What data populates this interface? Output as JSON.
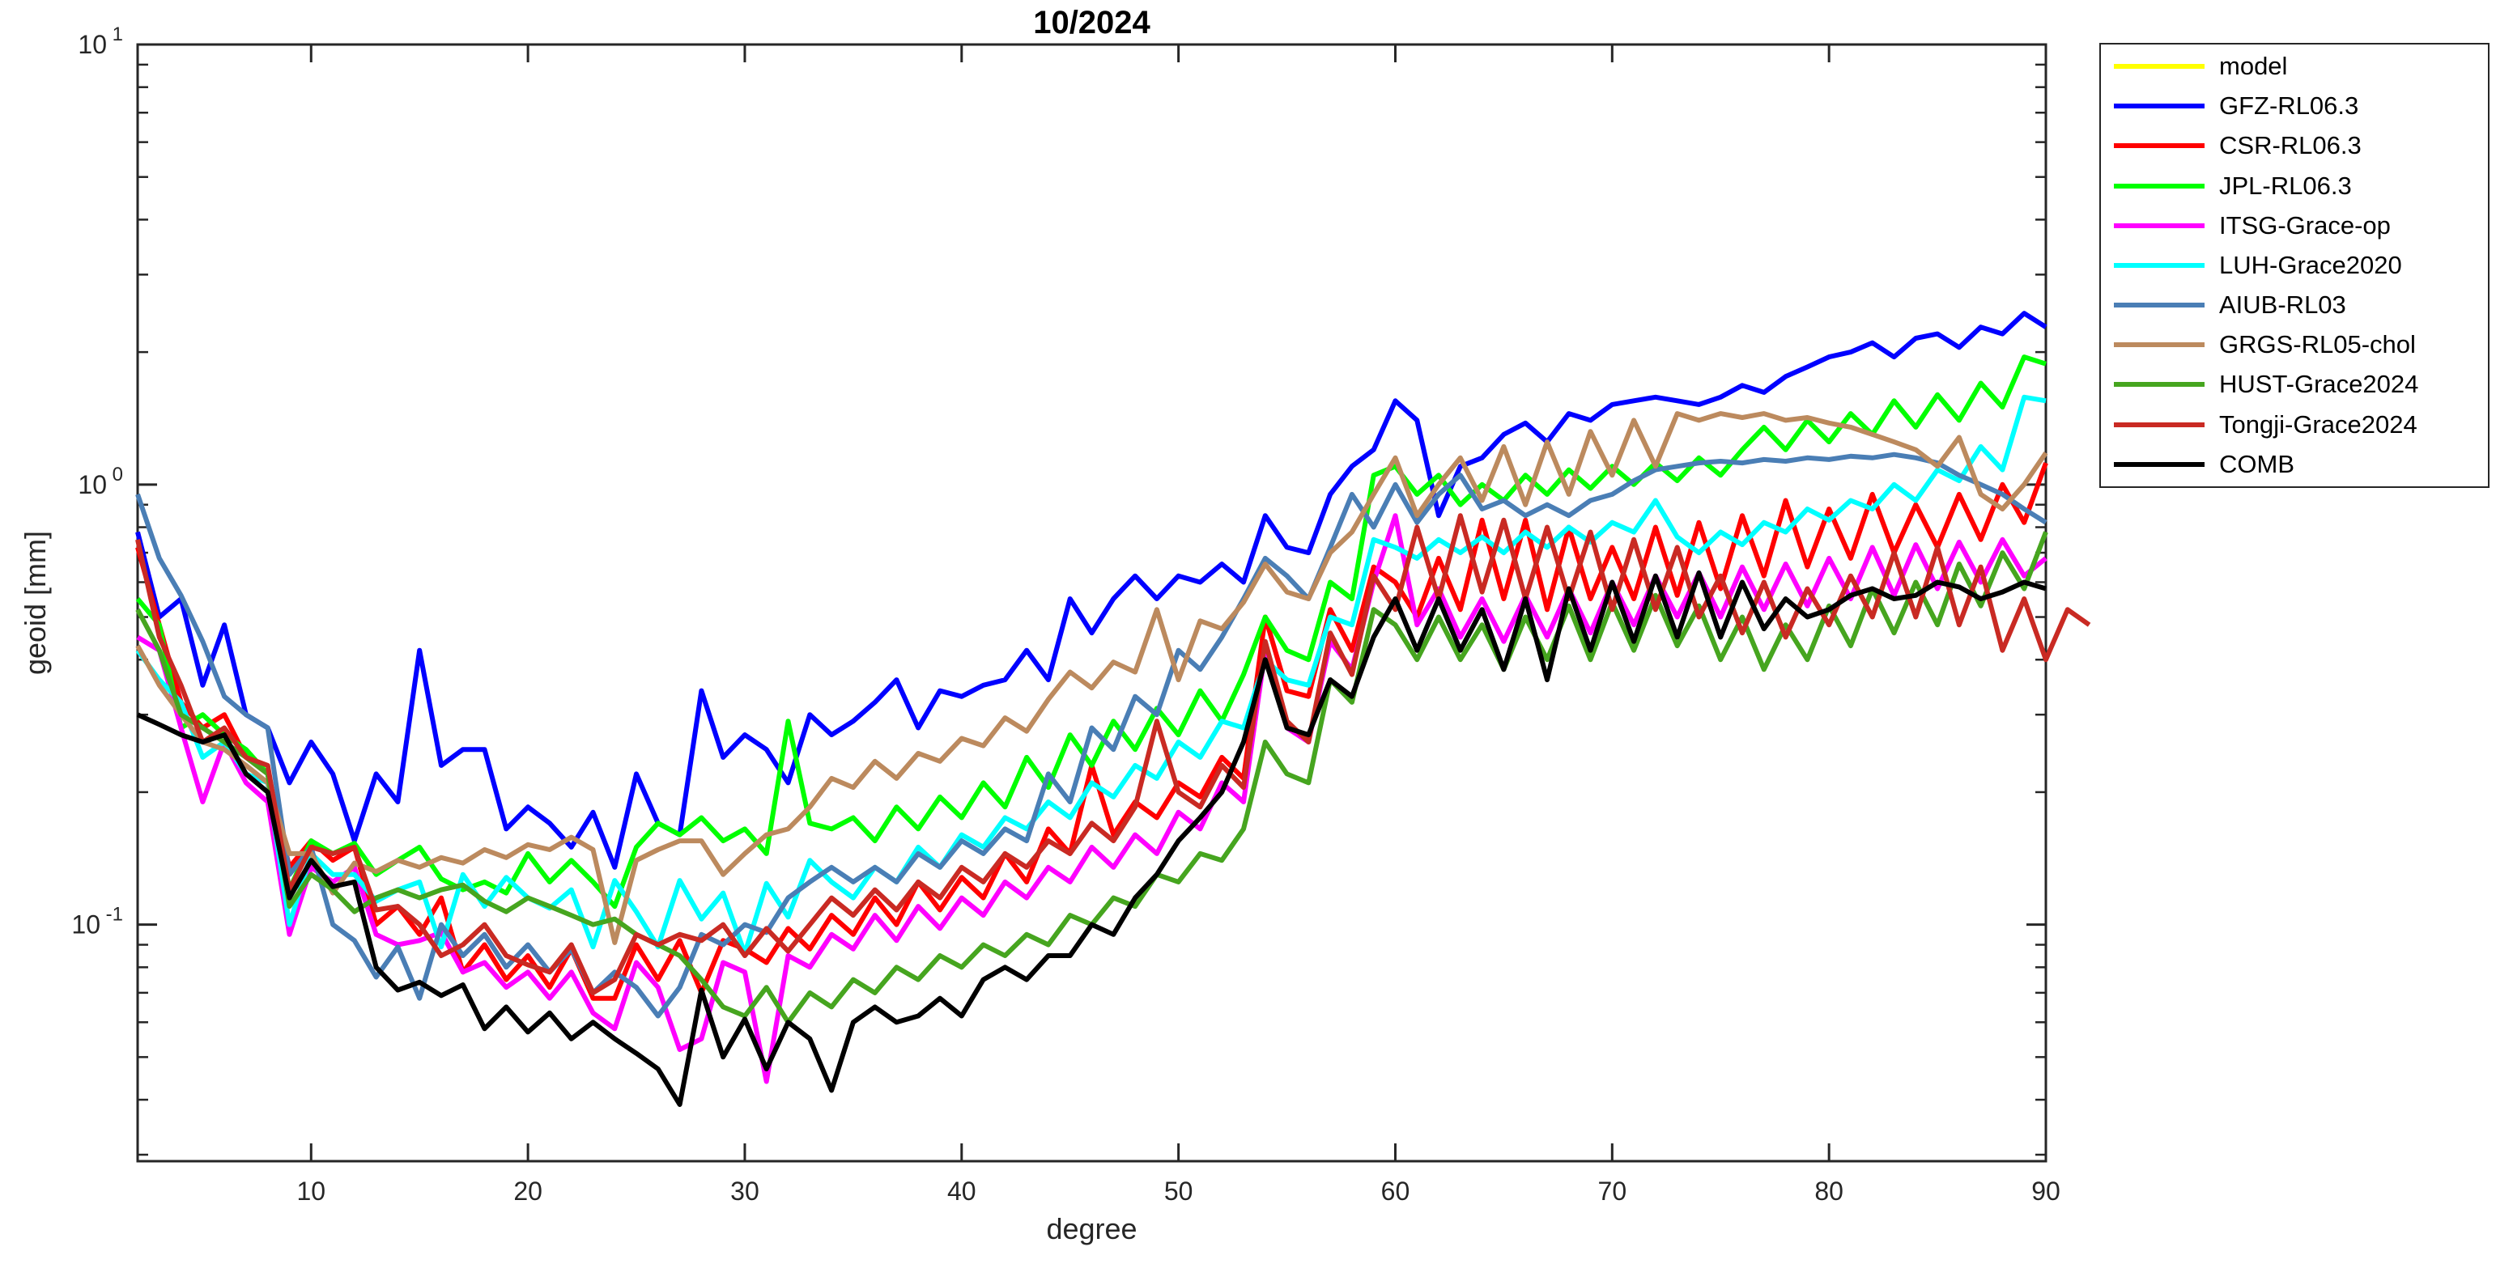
{
  "figure": {
    "title": "10/2024",
    "xlabel": "degree",
    "ylabel": "geoid [mm]"
  },
  "chart_data": {
    "type": "line",
    "title": "10/2024",
    "xlabel": "degree",
    "ylabel": "geoid [mm]",
    "grid": false,
    "legend_position": "outside-right",
    "x_axis": {
      "scale": "linear",
      "min": 2,
      "max": 90,
      "ticks": [
        10,
        20,
        30,
        40,
        50,
        60,
        70,
        80,
        90
      ]
    },
    "y_axis": {
      "scale": "log",
      "min": 0.029,
      "max": 10,
      "major_ticks": [
        {
          "value": 10,
          "base": "10",
          "exp": "1"
        },
        {
          "value": 1,
          "base": "10",
          "exp": "0"
        },
        {
          "value": 0.1,
          "base": "10",
          "exp": "-1"
        }
      ],
      "minor_ticks": [
        0.03,
        0.04,
        0.05,
        0.06,
        0.07,
        0.08,
        0.09,
        0.2,
        0.3,
        0.4,
        0.5,
        0.6,
        0.7,
        0.8,
        0.9,
        2,
        3,
        4,
        5,
        6,
        7,
        8,
        9
      ]
    },
    "axis_color": "#262626",
    "x_start": 2,
    "x_step": 1,
    "series": [
      {
        "name": "model",
        "color": "#ffff00",
        "values": []
      },
      {
        "name": "GFZ-RL06.3",
        "color": "#0000ff",
        "values": [
          0.78,
          0.5,
          0.55,
          0.35,
          0.48,
          0.3,
          0.28,
          0.21,
          0.26,
          0.22,
          0.155,
          0.22,
          0.19,
          0.42,
          0.23,
          0.25,
          0.25,
          0.165,
          0.185,
          0.17,
          0.15,
          0.18,
          0.135,
          0.22,
          0.17,
          0.16,
          0.34,
          0.24,
          0.27,
          0.25,
          0.21,
          0.3,
          0.27,
          0.29,
          0.32,
          0.36,
          0.28,
          0.34,
          0.33,
          0.35,
          0.36,
          0.42,
          0.36,
          0.55,
          0.46,
          0.55,
          0.62,
          0.55,
          0.62,
          0.6,
          0.66,
          0.6,
          0.85,
          0.72,
          0.7,
          0.95,
          1.1,
          1.2,
          1.55,
          1.4,
          0.85,
          1.1,
          1.15,
          1.3,
          1.38,
          1.25,
          1.45,
          1.4,
          1.52,
          1.55,
          1.58,
          1.55,
          1.52,
          1.58,
          1.68,
          1.62,
          1.76,
          1.85,
          1.95,
          2.0,
          2.1,
          1.95,
          2.15,
          2.2,
          2.05,
          2.28,
          2.2,
          2.45,
          2.28
        ]
      },
      {
        "name": "CSR-RL06.3",
        "color": "#ff0000",
        "values": [
          0.72,
          0.48,
          0.32,
          0.28,
          0.3,
          0.24,
          0.22,
          0.135,
          0.155,
          0.14,
          0.15,
          0.1,
          0.11,
          0.095,
          0.115,
          0.078,
          0.09,
          0.075,
          0.085,
          0.072,
          0.088,
          0.068,
          0.068,
          0.09,
          0.075,
          0.092,
          0.07,
          0.092,
          0.088,
          0.082,
          0.098,
          0.088,
          0.105,
          0.095,
          0.115,
          0.1,
          0.125,
          0.108,
          0.128,
          0.115,
          0.145,
          0.125,
          0.165,
          0.145,
          0.23,
          0.16,
          0.19,
          0.175,
          0.21,
          0.195,
          0.24,
          0.215,
          0.5,
          0.34,
          0.33,
          0.52,
          0.42,
          0.65,
          0.6,
          0.5,
          0.68,
          0.52,
          0.83,
          0.55,
          0.83,
          0.52,
          0.8,
          0.55,
          0.72,
          0.55,
          0.8,
          0.56,
          0.82,
          0.58,
          0.85,
          0.62,
          0.92,
          0.65,
          0.88,
          0.68,
          0.95,
          0.7,
          0.9,
          0.72,
          0.95,
          0.75,
          1.0,
          0.82,
          1.12
        ]
      },
      {
        "name": "JPL-RL06.3",
        "color": "#00ff00",
        "values": [
          0.55,
          0.48,
          0.28,
          0.3,
          0.27,
          0.25,
          0.22,
          0.12,
          0.155,
          0.145,
          0.153,
          0.13,
          0.14,
          0.15,
          0.127,
          0.12,
          0.125,
          0.118,
          0.145,
          0.125,
          0.14,
          0.125,
          0.11,
          0.15,
          0.17,
          0.16,
          0.175,
          0.155,
          0.165,
          0.145,
          0.29,
          0.17,
          0.165,
          0.175,
          0.155,
          0.185,
          0.165,
          0.195,
          0.175,
          0.21,
          0.185,
          0.24,
          0.205,
          0.27,
          0.23,
          0.29,
          0.25,
          0.31,
          0.27,
          0.34,
          0.29,
          0.37,
          0.5,
          0.42,
          0.4,
          0.6,
          0.55,
          1.05,
          1.1,
          0.95,
          1.05,
          0.9,
          1.0,
          0.92,
          1.05,
          0.95,
          1.08,
          0.98,
          1.1,
          1.0,
          1.12,
          1.02,
          1.15,
          1.05,
          1.2,
          1.35,
          1.2,
          1.4,
          1.25,
          1.45,
          1.3,
          1.55,
          1.35,
          1.6,
          1.4,
          1.7,
          1.5,
          1.95,
          1.88
        ]
      },
      {
        "name": "ITSG-Grace-op",
        "color": "#ff00ff",
        "values": [
          0.45,
          0.42,
          0.28,
          0.19,
          0.26,
          0.21,
          0.19,
          0.095,
          0.135,
          0.125,
          0.135,
          0.095,
          0.09,
          0.092,
          0.096,
          0.078,
          0.082,
          0.072,
          0.078,
          0.068,
          0.078,
          0.063,
          0.058,
          0.082,
          0.072,
          0.052,
          0.055,
          0.082,
          0.078,
          0.044,
          0.085,
          0.08,
          0.095,
          0.088,
          0.105,
          0.092,
          0.11,
          0.098,
          0.115,
          0.105,
          0.125,
          0.115,
          0.135,
          0.125,
          0.15,
          0.135,
          0.16,
          0.145,
          0.18,
          0.165,
          0.21,
          0.19,
          0.42,
          0.28,
          0.26,
          0.44,
          0.38,
          0.6,
          0.85,
          0.48,
          0.58,
          0.45,
          0.55,
          0.44,
          0.56,
          0.45,
          0.58,
          0.46,
          0.6,
          0.48,
          0.62,
          0.5,
          0.63,
          0.5,
          0.65,
          0.52,
          0.66,
          0.53,
          0.68,
          0.55,
          0.72,
          0.56,
          0.73,
          0.58,
          0.74,
          0.6,
          0.75,
          0.62,
          0.68
        ]
      },
      {
        "name": "LUH-Grace2020",
        "color": "#00ffff",
        "values": [
          0.42,
          0.36,
          0.32,
          0.24,
          0.26,
          0.22,
          0.21,
          0.1,
          0.145,
          0.13,
          0.13,
          0.113,
          0.12,
          0.125,
          0.089,
          0.13,
          0.11,
          0.128,
          0.115,
          0.109,
          0.12,
          0.089,
          0.126,
          0.107,
          0.089,
          0.126,
          0.103,
          0.118,
          0.086,
          0.124,
          0.104,
          0.14,
          0.125,
          0.115,
          0.135,
          0.125,
          0.15,
          0.135,
          0.16,
          0.15,
          0.175,
          0.165,
          0.19,
          0.175,
          0.21,
          0.195,
          0.23,
          0.215,
          0.26,
          0.24,
          0.29,
          0.28,
          0.4,
          0.36,
          0.35,
          0.5,
          0.48,
          0.75,
          0.72,
          0.68,
          0.75,
          0.7,
          0.76,
          0.7,
          0.78,
          0.72,
          0.8,
          0.74,
          0.82,
          0.78,
          0.92,
          0.76,
          0.7,
          0.78,
          0.73,
          0.82,
          0.78,
          0.88,
          0.83,
          0.92,
          0.88,
          1.0,
          0.92,
          1.08,
          1.02,
          1.22,
          1.08,
          1.58,
          1.55
        ]
      },
      {
        "name": "AIUB-RL03",
        "color": "#4a7eb5",
        "values": [
          0.95,
          0.68,
          0.56,
          0.44,
          0.33,
          0.3,
          0.28,
          0.13,
          0.15,
          0.1,
          0.092,
          0.076,
          0.089,
          0.068,
          0.1,
          0.085,
          0.095,
          0.08,
          0.09,
          0.078,
          0.088,
          0.07,
          0.078,
          0.072,
          0.062,
          0.072,
          0.095,
          0.09,
          0.1,
          0.096,
          0.115,
          0.125,
          0.135,
          0.125,
          0.135,
          0.125,
          0.145,
          0.135,
          0.155,
          0.145,
          0.165,
          0.155,
          0.22,
          0.19,
          0.28,
          0.25,
          0.33,
          0.3,
          0.42,
          0.38,
          0.45,
          0.55,
          0.68,
          0.62,
          0.55,
          0.72,
          0.95,
          0.8,
          1.0,
          0.82,
          0.95,
          1.05,
          0.88,
          0.92,
          0.85,
          0.9,
          0.85,
          0.92,
          0.95,
          1.02,
          1.08,
          1.1,
          1.12,
          1.13,
          1.12,
          1.14,
          1.13,
          1.15,
          1.14,
          1.16,
          1.15,
          1.17,
          1.15,
          1.12,
          1.05,
          1.0,
          0.95,
          0.88,
          0.82
        ]
      },
      {
        "name": "GRGS-RL05-chol",
        "color": "#bc8a5e",
        "values": [
          0.43,
          0.35,
          0.3,
          0.26,
          0.25,
          0.23,
          0.21,
          0.145,
          0.145,
          0.118,
          0.138,
          0.132,
          0.14,
          0.135,
          0.142,
          0.138,
          0.148,
          0.142,
          0.152,
          0.148,
          0.158,
          0.148,
          0.091,
          0.14,
          0.148,
          0.155,
          0.155,
          0.13,
          0.145,
          0.16,
          0.165,
          0.185,
          0.215,
          0.205,
          0.235,
          0.215,
          0.245,
          0.235,
          0.265,
          0.255,
          0.295,
          0.275,
          0.325,
          0.375,
          0.345,
          0.395,
          0.375,
          0.52,
          0.36,
          0.49,
          0.47,
          0.54,
          0.66,
          0.57,
          0.55,
          0.7,
          0.78,
          0.95,
          1.15,
          0.85,
          1.0,
          1.15,
          0.92,
          1.22,
          0.9,
          1.25,
          0.95,
          1.32,
          1.05,
          1.4,
          1.1,
          1.45,
          1.4,
          1.45,
          1.42,
          1.45,
          1.4,
          1.42,
          1.38,
          1.35,
          1.3,
          1.25,
          1.2,
          1.1,
          1.28,
          0.95,
          0.88,
          1.0,
          1.18
        ]
      },
      {
        "name": "HUST-Grace2024",
        "color": "#46a51f",
        "values": [
          0.52,
          0.42,
          0.3,
          0.28,
          0.26,
          0.24,
          0.22,
          0.11,
          0.13,
          0.12,
          0.107,
          0.115,
          0.12,
          0.115,
          0.12,
          0.123,
          0.113,
          0.107,
          0.115,
          0.11,
          0.105,
          0.1,
          0.103,
          0.095,
          0.09,
          0.085,
          0.075,
          0.065,
          0.062,
          0.072,
          0.06,
          0.07,
          0.065,
          0.075,
          0.07,
          0.08,
          0.075,
          0.085,
          0.08,
          0.09,
          0.085,
          0.095,
          0.09,
          0.105,
          0.1,
          0.115,
          0.11,
          0.13,
          0.125,
          0.145,
          0.14,
          0.165,
          0.26,
          0.22,
          0.21,
          0.36,
          0.32,
          0.52,
          0.48,
          0.4,
          0.5,
          0.4,
          0.48,
          0.38,
          0.5,
          0.4,
          0.53,
          0.4,
          0.54,
          0.42,
          0.56,
          0.43,
          0.53,
          0.4,
          0.5,
          0.38,
          0.48,
          0.4,
          0.53,
          0.43,
          0.58,
          0.46,
          0.6,
          0.48,
          0.66,
          0.53,
          0.7,
          0.58,
          0.78
        ]
      },
      {
        "name": "Tongji-Grace2024",
        "color": "#c92a23",
        "values": [
          0.75,
          0.45,
          0.35,
          0.26,
          0.28,
          0.24,
          0.23,
          0.12,
          0.15,
          0.145,
          0.15,
          0.108,
          0.11,
          0.1,
          0.085,
          0.09,
          0.1,
          0.085,
          0.081,
          0.078,
          0.09,
          0.07,
          0.075,
          0.095,
          0.09,
          0.095,
          0.092,
          0.1,
          0.085,
          0.098,
          0.087,
          0.1,
          0.115,
          0.105,
          0.12,
          0.108,
          0.125,
          0.115,
          0.135,
          0.125,
          0.145,
          0.135,
          0.155,
          0.145,
          0.17,
          0.155,
          0.185,
          0.29,
          0.2,
          0.185,
          0.23,
          0.205,
          0.44,
          0.29,
          0.26,
          0.46,
          0.37,
          0.62,
          0.52,
          0.8,
          0.55,
          0.85,
          0.57,
          0.83,
          0.55,
          0.8,
          0.55,
          0.78,
          0.52,
          0.75,
          0.52,
          0.72,
          0.5,
          0.62,
          0.46,
          0.6,
          0.45,
          0.58,
          0.48,
          0.62,
          0.5,
          0.7,
          0.5,
          0.72,
          0.48,
          0.65,
          0.42,
          0.55,
          0.4,
          0.52,
          0.48
        ]
      },
      {
        "name": "COMB",
        "color": "#000000",
        "values": [
          0.3,
          0.285,
          0.27,
          0.26,
          0.27,
          0.22,
          0.2,
          0.115,
          0.14,
          0.122,
          0.125,
          0.08,
          0.071,
          0.074,
          0.069,
          0.073,
          0.058,
          0.065,
          0.057,
          0.063,
          0.055,
          0.06,
          0.055,
          0.051,
          0.047,
          0.039,
          0.071,
          0.05,
          0.061,
          0.047,
          0.06,
          0.055,
          0.042,
          0.06,
          0.065,
          0.06,
          0.062,
          0.068,
          0.062,
          0.075,
          0.08,
          0.075,
          0.085,
          0.085,
          0.1,
          0.095,
          0.115,
          0.13,
          0.155,
          0.175,
          0.2,
          0.26,
          0.4,
          0.28,
          0.27,
          0.36,
          0.33,
          0.45,
          0.55,
          0.42,
          0.55,
          0.42,
          0.52,
          0.38,
          0.55,
          0.36,
          0.58,
          0.42,
          0.6,
          0.44,
          0.62,
          0.45,
          0.63,
          0.45,
          0.6,
          0.47,
          0.55,
          0.5,
          0.52,
          0.56,
          0.58,
          0.55,
          0.56,
          0.6,
          0.585,
          0.55,
          0.57,
          0.6,
          0.58
        ]
      }
    ]
  }
}
